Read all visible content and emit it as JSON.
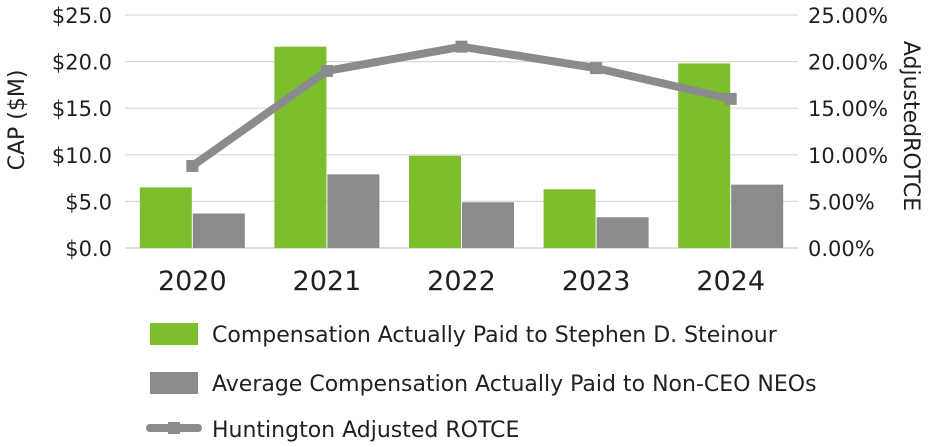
{
  "chart_data": {
    "type": "bar",
    "categories": [
      "2020",
      "2021",
      "2022",
      "2023",
      "2024"
    ],
    "series": [
      {
        "name": "Compensation Actually Paid to Stephen D. Steinour",
        "type": "bar",
        "axis": "left",
        "color": "#7dbe2d",
        "values": [
          6.5,
          21.6,
          9.9,
          6.3,
          19.8
        ]
      },
      {
        "name": "Average Compensation Actually Paid to Non-CEO NEOs",
        "type": "bar",
        "axis": "left",
        "color": "#8a8b8d",
        "values": [
          3.7,
          7.9,
          4.9,
          3.3,
          6.8
        ]
      },
      {
        "name": "Huntington Adjusted ROTCE",
        "type": "line",
        "axis": "right",
        "color": "#8a8b8d",
        "values": [
          8.8,
          19.0,
          21.6,
          19.3,
          16.0
        ]
      }
    ],
    "ylabel": "CAP ($M)",
    "y2label": "AdjustedROTCE",
    "ylim": [
      0,
      25
    ],
    "y2lim": [
      0,
      25
    ],
    "yticks": [
      "$0.0",
      "$5.0",
      "$10.0",
      "$15.0",
      "$20.0",
      "$25.0"
    ],
    "y2ticks": [
      "0.00%",
      "5.00%",
      "10.00%",
      "15.00%",
      "20.00%",
      "25.00%"
    ],
    "grid": true,
    "legend_position": "bottom"
  }
}
